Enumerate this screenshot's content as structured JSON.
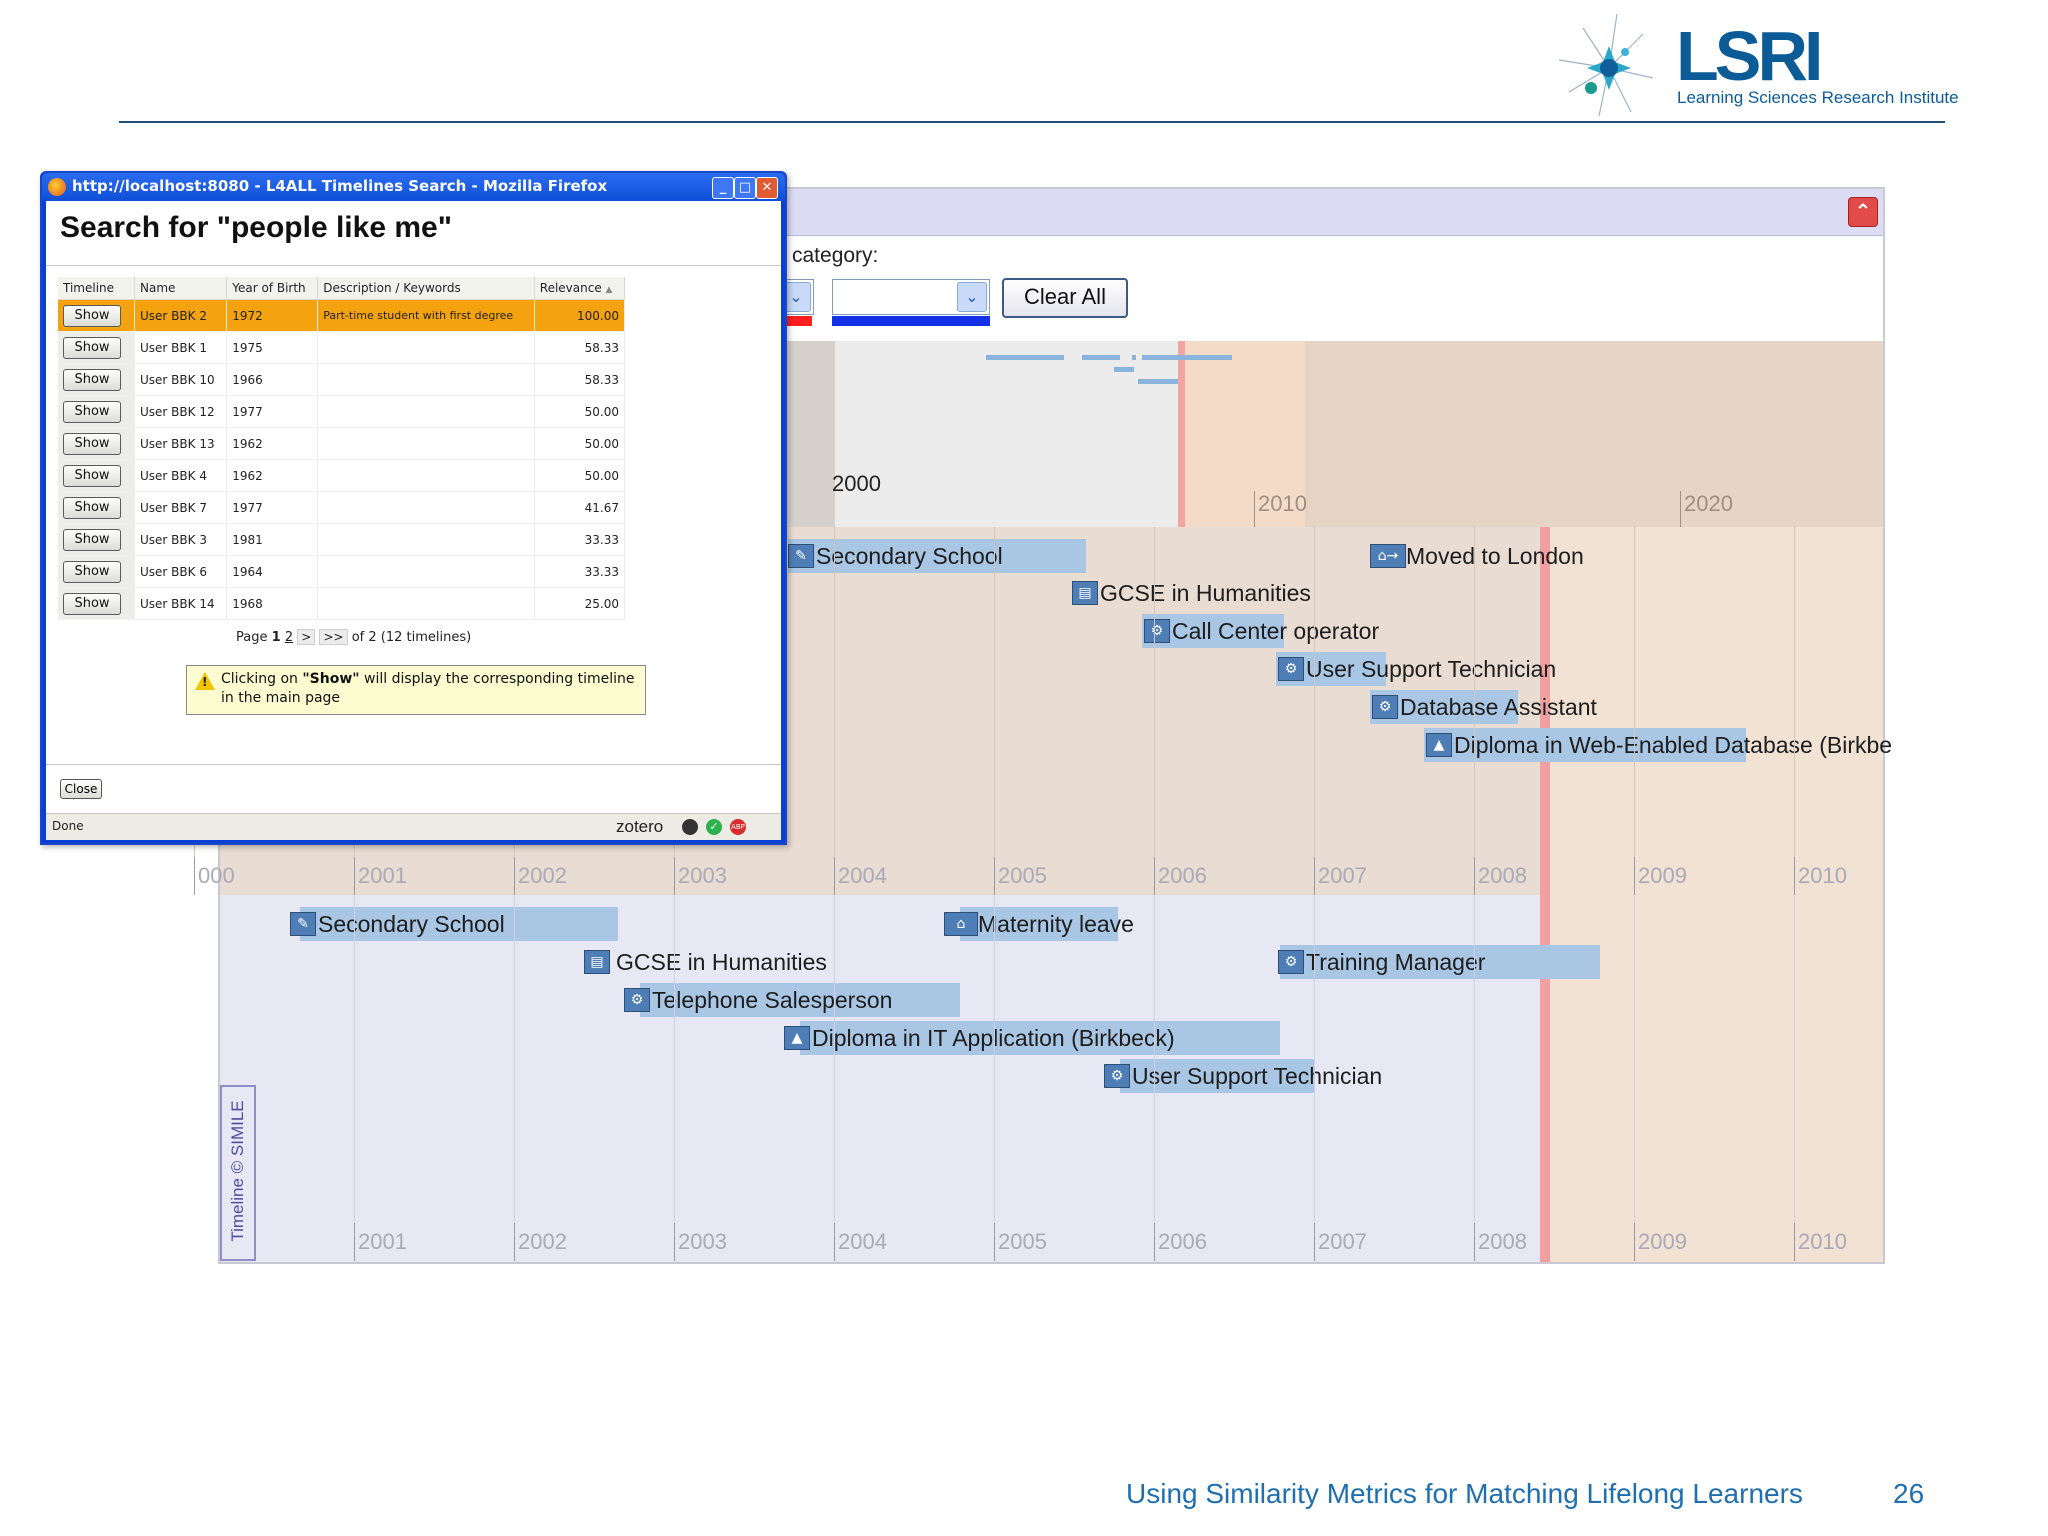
{
  "slide": {
    "logo_text": "LSRI",
    "logo_subtitle": "Learning Sciences Research Institute",
    "footer_title": "Using Similarity Metrics for Matching Lifelong Learners",
    "page_number": "26"
  },
  "timeline_app": {
    "collapse_icon": "chevron-up-icon",
    "filter": {
      "category_label": "category:",
      "combo_1_value": "",
      "combo_2_value": "",
      "combo_1_color": "#ff1f1f",
      "combo_2_color": "#1431e6",
      "clear_all_label": "Clear All"
    },
    "overview": {
      "focus_year": "2000",
      "years": [
        "2010",
        "2020"
      ]
    },
    "top_band": {
      "years": [
        "000",
        "2001",
        "2002",
        "2003",
        "2004",
        "2005",
        "2006",
        "2007",
        "2008",
        "2009",
        "2010"
      ],
      "events": [
        {
          "label": "Secondary School",
          "icon": "school-icon"
        },
        {
          "label": "GCSE in Humanities",
          "icon": "certificate-icon"
        },
        {
          "label": "Call Center operator",
          "icon": "gear-icon"
        },
        {
          "label": "User Support Technician",
          "icon": "gear-icon"
        },
        {
          "label": "Database Assistant",
          "icon": "gear-icon"
        },
        {
          "label": "Diploma in Web-Enabled Database (Birkbe",
          "icon": "graduation-cap-icon"
        },
        {
          "label": "Moved to London",
          "icon": "home-move-icon"
        }
      ]
    },
    "bottom_band": {
      "years": [
        "2001",
        "2002",
        "2003",
        "2004",
        "2005",
        "2006",
        "2007",
        "2008",
        "2009",
        "2010"
      ],
      "events": [
        {
          "label": "Secondary School",
          "icon": "school-icon"
        },
        {
          "label": "GCSE in Humanities",
          "icon": "certificate-icon"
        },
        {
          "label": "Telephone Salesperson",
          "icon": "gear-icon"
        },
        {
          "label": "Diploma in IT Application (Birkbeck)",
          "icon": "graduation-cap-icon"
        },
        {
          "label": "User Support Technician",
          "icon": "gear-icon"
        },
        {
          "label": "Maternity leave",
          "icon": "home-child-icon"
        },
        {
          "label": "Training Manager",
          "icon": "gear-icon"
        }
      ],
      "credit": "Timeline © SIMILE"
    }
  },
  "popup": {
    "window_title": "http://localhost:8080 - L4ALL Timelines Search - Mozilla Firefox",
    "heading": "Search for \"people like me\"",
    "columns": [
      "Timeline",
      "Name",
      "Year of Birth",
      "Description / Keywords",
      "Relevance"
    ],
    "sort_indicator": "▲",
    "show_label": "Show",
    "rows": [
      {
        "name": "User BBK 2",
        "year": "1972",
        "desc": "Part-time student with first degree",
        "relevance": "100.00"
      },
      {
        "name": "User BBK 1",
        "year": "1975",
        "desc": "",
        "relevance": "58.33"
      },
      {
        "name": "User BBK 10",
        "year": "1966",
        "desc": "",
        "relevance": "58.33"
      },
      {
        "name": "User BBK 12",
        "year": "1977",
        "desc": "",
        "relevance": "50.00"
      },
      {
        "name": "User BBK 13",
        "year": "1962",
        "desc": "",
        "relevance": "50.00"
      },
      {
        "name": "User BBK 4",
        "year": "1962",
        "desc": "",
        "relevance": "50.00"
      },
      {
        "name": "User BBK 7",
        "year": "1977",
        "desc": "",
        "relevance": "41.67"
      },
      {
        "name": "User BBK 3",
        "year": "1981",
        "desc": "",
        "relevance": "33.33"
      },
      {
        "name": "User BBK 6",
        "year": "1964",
        "desc": "",
        "relevance": "33.33"
      },
      {
        "name": "User BBK 14",
        "year": "1968",
        "desc": "",
        "relevance": "25.00"
      }
    ],
    "pager": {
      "prefix": "Page",
      "current": "1",
      "next_page": "2",
      "next": ">",
      "last": ">>",
      "suffix": "of 2 (12 timelines)"
    },
    "hint": {
      "before": "Clicking on ",
      "bold": "\"Show\"",
      "after": " will display the corresponding timeline in the main page"
    },
    "close_label": "Close",
    "status_text": "Done",
    "status_addon": "zotero"
  }
}
